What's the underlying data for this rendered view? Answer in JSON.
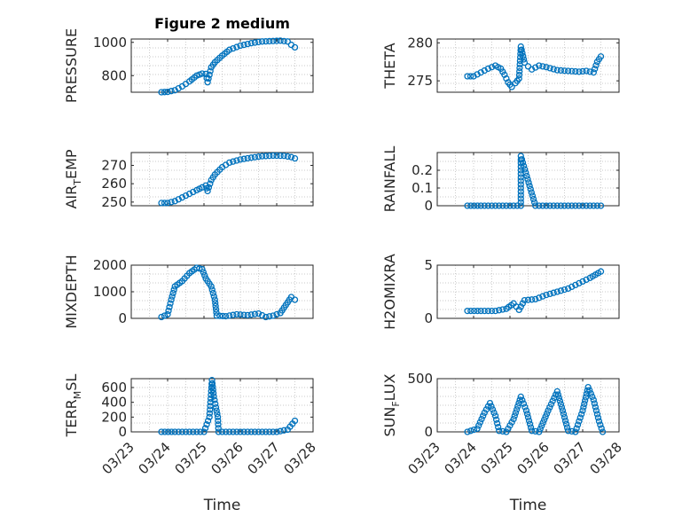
{
  "figure": {
    "title": "Figure 2 medium",
    "marker_color": "#0072BD",
    "axis_color": "#262626",
    "grid_color": "#b8b8b8",
    "xlabel": "Time",
    "x_tick_labels": [
      "03/23",
      "03/24",
      "03/25",
      "03/26",
      "03/27",
      "03/28"
    ]
  },
  "chart_data": [
    {
      "type": "scatter",
      "ylabel": "PRESSURE",
      "title": "Figure 2 medium",
      "xlim": [
        0,
        5
      ],
      "ylim": [
        700,
        1020
      ],
      "yticks": [
        800,
        1000
      ],
      "ytick_labels": [
        "800",
        "1000"
      ],
      "grid": true,
      "series": [
        {
          "points": [
            [
              0.83,
              700
            ],
            [
              1.0,
              702
            ],
            [
              1.2,
              712
            ],
            [
              1.4,
              735
            ],
            [
              1.6,
              765
            ],
            [
              1.8,
              800
            ],
            [
              1.95,
              812
            ],
            [
              2.05,
              810
            ],
            [
              2.1,
              760
            ],
            [
              2.2,
              850
            ],
            [
              2.3,
              880
            ],
            [
              2.5,
              920
            ],
            [
              2.7,
              955
            ],
            [
              3.0,
              980
            ],
            [
              3.3,
              995
            ],
            [
              3.6,
              1005
            ],
            [
              3.9,
              1008
            ],
            [
              4.1,
              1010
            ],
            [
              4.3,
              1005
            ],
            [
              4.4,
              985
            ],
            [
              4.5,
              970
            ]
          ]
        }
      ]
    },
    {
      "type": "scatter",
      "ylabel": "THETA",
      "xlim": [
        0,
        5
      ],
      "ylim": [
        273.5,
        280.5
      ],
      "yticks": [
        275,
        280
      ],
      "ytick_labels": [
        "275",
        "280"
      ],
      "grid": true,
      "series": [
        {
          "points": [
            [
              0.83,
              275.6
            ],
            [
              1.0,
              275.6
            ],
            [
              1.2,
              276.1
            ],
            [
              1.4,
              276.6
            ],
            [
              1.6,
              277
            ],
            [
              1.75,
              276.6
            ],
            [
              1.85,
              275.8
            ],
            [
              1.95,
              274.8
            ],
            [
              2.05,
              274.2
            ],
            [
              2.15,
              274.7
            ],
            [
              2.25,
              275.3
            ],
            [
              2.3,
              279.5
            ],
            [
              2.4,
              277.4
            ],
            [
              2.5,
              276.9
            ],
            [
              2.6,
              276.5
            ],
            [
              2.8,
              277
            ],
            [
              3.0,
              276.8
            ],
            [
              3.3,
              276.4
            ],
            [
              3.6,
              276.3
            ],
            [
              3.9,
              276.2
            ],
            [
              4.1,
              276.3
            ],
            [
              4.3,
              276.1
            ],
            [
              4.4,
              277.5
            ],
            [
              4.5,
              278.2
            ]
          ]
        }
      ]
    },
    {
      "type": "scatter",
      "ylabel": "AIR_T EMP",
      "xlim": [
        0,
        5
      ],
      "ylim": [
        248,
        277
      ],
      "yticks": [
        250,
        260,
        270
      ],
      "ytick_labels": [
        "250",
        "260",
        "270"
      ],
      "grid": true,
      "series": [
        {
          "points": [
            [
              0.83,
              249.5
            ],
            [
              1.0,
              249.5
            ],
            [
              1.2,
              250.5
            ],
            [
              1.4,
              252.5
            ],
            [
              1.6,
              254.5
            ],
            [
              1.8,
              256.5
            ],
            [
              1.95,
              258
            ],
            [
              2.05,
              259
            ],
            [
              2.1,
              256
            ],
            [
              2.2,
              262
            ],
            [
              2.3,
              265
            ],
            [
              2.5,
              269
            ],
            [
              2.7,
              271.5
            ],
            [
              3.0,
              273.2
            ],
            [
              3.3,
              274.2
            ],
            [
              3.6,
              275
            ],
            [
              3.9,
              275.3
            ],
            [
              4.2,
              275.2
            ],
            [
              4.4,
              274.5
            ],
            [
              4.5,
              273.8
            ]
          ]
        }
      ]
    },
    {
      "type": "scatter",
      "ylabel": "RAINFALL",
      "xlim": [
        0,
        5
      ],
      "ylim": [
        0,
        0.3
      ],
      "yticks": [
        0,
        0.1,
        0.2
      ],
      "ytick_labels": [
        "0",
        "0.1",
        "0.2"
      ],
      "grid": true,
      "series": [
        {
          "points": [
            [
              0.83,
              0
            ],
            [
              1.2,
              0
            ],
            [
              1.6,
              0
            ],
            [
              2.0,
              0
            ],
            [
              2.3,
              0
            ],
            [
              2.3,
              0.28
            ],
            [
              2.7,
              0
            ],
            [
              3.1,
              0
            ],
            [
              3.5,
              0
            ],
            [
              3.9,
              0
            ],
            [
              4.3,
              0
            ],
            [
              4.5,
              0
            ]
          ]
        }
      ]
    },
    {
      "type": "scatter",
      "ylabel": "MIXDEPTH",
      "xlim": [
        0,
        5
      ],
      "ylim": [
        0,
        2000
      ],
      "yticks": [
        0,
        1000,
        2000
      ],
      "ytick_labels": [
        "0",
        "1000",
        "2000"
      ],
      "grid": true,
      "series": [
        {
          "points": [
            [
              0.83,
              50
            ],
            [
              1.0,
              150
            ],
            [
              1.1,
              700
            ],
            [
              1.2,
              1200
            ],
            [
              1.4,
              1400
            ],
            [
              1.6,
              1700
            ],
            [
              1.8,
              1900
            ],
            [
              1.95,
              1850
            ],
            [
              2.05,
              1500
            ],
            [
              2.2,
              1200
            ],
            [
              2.3,
              700
            ],
            [
              2.35,
              100
            ],
            [
              2.6,
              80
            ],
            [
              2.9,
              150
            ],
            [
              3.2,
              120
            ],
            [
              3.5,
              180
            ],
            [
              3.7,
              50
            ],
            [
              3.9,
              100
            ],
            [
              4.1,
              200
            ],
            [
              4.3,
              600
            ],
            [
              4.4,
              800
            ],
            [
              4.5,
              700
            ]
          ]
        }
      ]
    },
    {
      "type": "scatter",
      "ylabel": "H2OMIXRA",
      "xlim": [
        0,
        5
      ],
      "ylim": [
        0,
        5
      ],
      "yticks": [
        0,
        5
      ],
      "ytick_labels": [
        "0",
        "5"
      ],
      "grid": true,
      "series": [
        {
          "points": [
            [
              0.83,
              0.7
            ],
            [
              1.2,
              0.7
            ],
            [
              1.6,
              0.7
            ],
            [
              1.9,
              0.9
            ],
            [
              2.1,
              1.4
            ],
            [
              2.25,
              0.8
            ],
            [
              2.4,
              1.7
            ],
            [
              2.7,
              1.8
            ],
            [
              3.0,
              2.2
            ],
            [
              3.3,
              2.5
            ],
            [
              3.6,
              2.8
            ],
            [
              3.9,
              3.3
            ],
            [
              4.2,
              3.8
            ],
            [
              4.5,
              4.4
            ]
          ]
        }
      ]
    },
    {
      "type": "scatter",
      "ylabel": "TERR_M SL",
      "xlim": [
        0,
        5
      ],
      "ylim": [
        0,
        720
      ],
      "yticks": [
        0,
        200,
        400,
        600
      ],
      "ytick_labels": [
        "0",
        "200",
        "400",
        "600"
      ],
      "grid": true,
      "series": [
        {
          "points": [
            [
              0.83,
              0
            ],
            [
              1.2,
              0
            ],
            [
              1.6,
              0
            ],
            [
              2.0,
              0
            ],
            [
              2.15,
              200
            ],
            [
              2.22,
              700
            ],
            [
              2.27,
              480
            ],
            [
              2.33,
              330
            ],
            [
              2.38,
              200
            ],
            [
              2.4,
              0
            ],
            [
              2.8,
              0
            ],
            [
              3.2,
              0
            ],
            [
              3.6,
              0
            ],
            [
              4.0,
              0
            ],
            [
              4.3,
              30
            ],
            [
              4.5,
              150
            ]
          ]
        }
      ]
    },
    {
      "type": "scatter",
      "ylabel": "SUN_F LUX",
      "xlim": [
        0,
        5
      ],
      "ylim": [
        0,
        500
      ],
      "yticks": [
        0,
        500
      ],
      "ytick_labels": [
        "0",
        "500"
      ],
      "grid": true,
      "series": [
        {
          "points": [
            [
              0.83,
              0
            ],
            [
              1.1,
              30
            ],
            [
              1.3,
              180
            ],
            [
              1.45,
              270
            ],
            [
              1.6,
              150
            ],
            [
              1.7,
              10
            ],
            [
              1.9,
              0
            ],
            [
              2.1,
              120
            ],
            [
              2.3,
              330
            ],
            [
              2.45,
              200
            ],
            [
              2.6,
              10
            ],
            [
              2.8,
              0
            ],
            [
              3.05,
              200
            ],
            [
              3.3,
              380
            ],
            [
              3.45,
              200
            ],
            [
              3.6,
              10
            ],
            [
              3.8,
              0
            ],
            [
              4.0,
              200
            ],
            [
              4.15,
              420
            ],
            [
              4.3,
              300
            ],
            [
              4.45,
              100
            ],
            [
              4.55,
              0
            ]
          ]
        }
      ]
    }
  ]
}
